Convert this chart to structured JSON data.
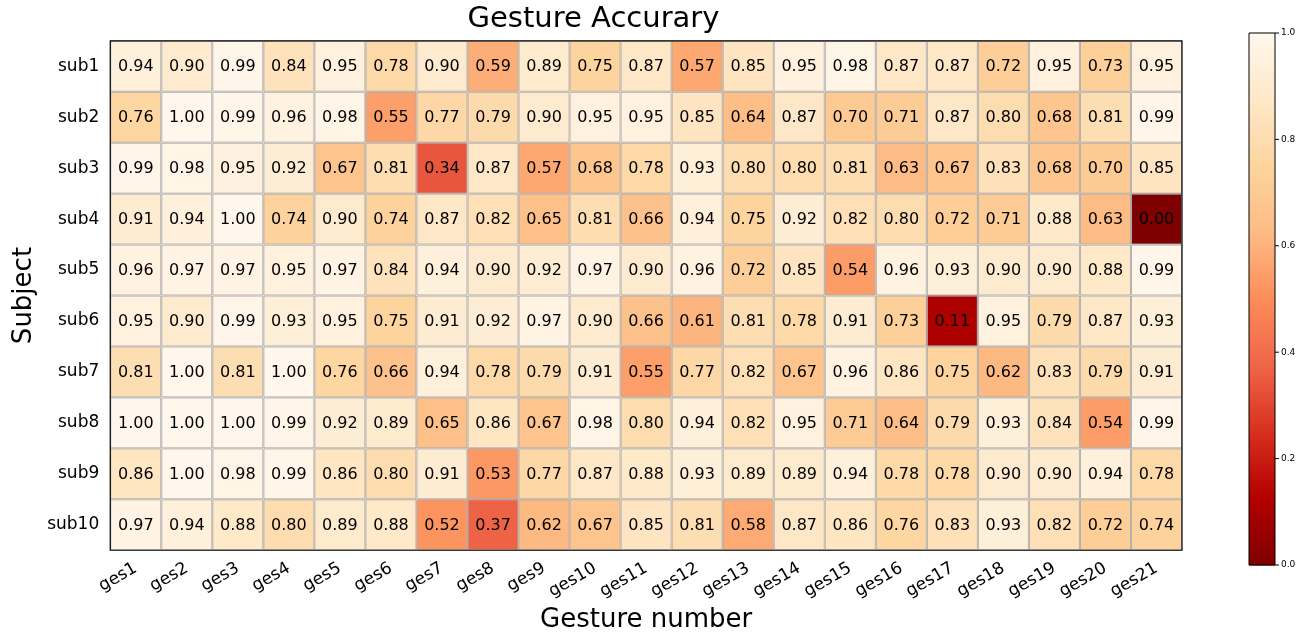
{
  "chart_data": {
    "type": "heatmap",
    "title": "Gesture Accurary",
    "xlabel": "Gesture number",
    "ylabel": "Subject",
    "categories": [
      "ges1",
      "ges2",
      "ges3",
      "ges4",
      "ges5",
      "ges6",
      "ges7",
      "ges8",
      "ges9",
      "ges10",
      "ges11",
      "ges12",
      "ges13",
      "ges14",
      "ges15",
      "ges16",
      "ges17",
      "ges18",
      "ges19",
      "ges20",
      "ges21"
    ],
    "y_categories": [
      "sub1",
      "sub2",
      "sub3",
      "sub4",
      "sub5",
      "sub6",
      "sub7",
      "sub8",
      "sub9",
      "sub10"
    ],
    "cells": [
      [
        0.94,
        0.9,
        0.99,
        0.84,
        0.95,
        0.78,
        0.9,
        0.59,
        0.89,
        0.75,
        0.87,
        0.57,
        0.85,
        0.95,
        0.98,
        0.87,
        0.87,
        0.72,
        0.95,
        0.73,
        0.95
      ],
      [
        0.76,
        1.0,
        0.99,
        0.96,
        0.98,
        0.55,
        0.77,
        0.79,
        0.9,
        0.95,
        0.95,
        0.85,
        0.64,
        0.87,
        0.7,
        0.71,
        0.87,
        0.8,
        0.68,
        0.81,
        0.99
      ],
      [
        0.99,
        0.98,
        0.95,
        0.92,
        0.67,
        0.81,
        0.34,
        0.87,
        0.57,
        0.68,
        0.78,
        0.93,
        0.8,
        0.8,
        0.81,
        0.63,
        0.67,
        0.83,
        0.68,
        0.7,
        0.85
      ],
      [
        0.91,
        0.94,
        1.0,
        0.74,
        0.9,
        0.74,
        0.87,
        0.82,
        0.65,
        0.81,
        0.66,
        0.94,
        0.75,
        0.92,
        0.82,
        0.8,
        0.72,
        0.71,
        0.88,
        0.63,
        0.0
      ],
      [
        0.96,
        0.97,
        0.97,
        0.95,
        0.97,
        0.84,
        0.94,
        0.9,
        0.92,
        0.97,
        0.9,
        0.96,
        0.72,
        0.85,
        0.54,
        0.96,
        0.93,
        0.9,
        0.9,
        0.88,
        0.99
      ],
      [
        0.95,
        0.9,
        0.99,
        0.93,
        0.95,
        0.75,
        0.91,
        0.92,
        0.97,
        0.9,
        0.66,
        0.61,
        0.81,
        0.78,
        0.91,
        0.73,
        0.11,
        0.95,
        0.79,
        0.87,
        0.93
      ],
      [
        0.81,
        1.0,
        0.81,
        1.0,
        0.76,
        0.66,
        0.94,
        0.78,
        0.79,
        0.91,
        0.55,
        0.77,
        0.82,
        0.67,
        0.96,
        0.86,
        0.75,
        0.62,
        0.83,
        0.79,
        0.91
      ],
      [
        1.0,
        1.0,
        1.0,
        0.99,
        0.92,
        0.89,
        0.65,
        0.86,
        0.67,
        0.98,
        0.8,
        0.94,
        0.82,
        0.95,
        0.71,
        0.64,
        0.79,
        0.93,
        0.84,
        0.54,
        0.99
      ],
      [
        0.86,
        1.0,
        0.98,
        0.99,
        0.86,
        0.8,
        0.91,
        0.53,
        0.77,
        0.87,
        0.88,
        0.93,
        0.89,
        0.89,
        0.94,
        0.78,
        0.78,
        0.9,
        0.9,
        0.94,
        0.78
      ],
      [
        0.97,
        0.94,
        0.88,
        0.8,
        0.89,
        0.88,
        0.52,
        0.37,
        0.62,
        0.67,
        0.85,
        0.81,
        0.58,
        0.87,
        0.86,
        0.76,
        0.83,
        0.93,
        0.82,
        0.72,
        0.74
      ]
    ],
    "cell_labels": [
      [
        "0.94",
        "0.90",
        "0.99",
        "0.84",
        "0.95",
        "0.78",
        "0.90",
        "0.59",
        "0.89",
        "0.75",
        "0.87",
        "0.57",
        "0.85",
        "0.95",
        "0.98",
        "0.87",
        "0.87",
        "0.72",
        "0.95",
        "0.73",
        "0.95"
      ],
      [
        "0.76",
        "1.00",
        "0.99",
        "0.96",
        "0.98",
        "0.55",
        "0.77",
        "0.79",
        "0.90",
        "0.95",
        "0.95",
        "0.85",
        "0.64",
        "0.87",
        "0.70",
        "0.71",
        "0.87",
        "0.80",
        "0.68",
        "0.81",
        "0.99"
      ],
      [
        "0.99",
        "0.98",
        "0.95",
        "0.92",
        "0.67",
        "0.81",
        "0.34",
        "0.87",
        "0.57",
        "0.68",
        "0.78",
        "0.93",
        "0.80",
        "0.80",
        "0.81",
        "0.63",
        "0.67",
        "0.83",
        "0.68",
        "0.70",
        "0.85"
      ],
      [
        "0.91",
        "0.94",
        "1.00",
        "0.74",
        "0.90",
        "0.74",
        "0.87",
        "0.82",
        "0.65",
        "0.81",
        "0.66",
        "0.94",
        "0.75",
        "0.92",
        "0.82",
        "0.80",
        "0.72",
        "0.71",
        "0.88",
        "0.63",
        "0.00"
      ],
      [
        "0.96",
        "0.97",
        "0.97",
        "0.95",
        "0.97",
        "0.84",
        "0.94",
        "0.90",
        "0.92",
        "0.97",
        "0.90",
        "0.96",
        "0.72",
        "0.85",
        "0.54",
        "0.96",
        "0.93",
        "0.90",
        "0.90",
        "0.88",
        "0.99"
      ],
      [
        "0.95",
        "0.90",
        "0.99",
        "0.93",
        "0.95",
        "0.75",
        "0.91",
        "0.92",
        "0.97",
        "0.90",
        "0.66",
        "0.61",
        "0.81",
        "0.78",
        "0.91",
        "0.73",
        "0.11",
        "0.95",
        "0.79",
        "0.87",
        "0.93"
      ],
      [
        "0.81",
        "1.00",
        "0.81",
        "1.00",
        "0.76",
        "0.66",
        "0.94",
        "0.78",
        "0.79",
        "0.91",
        "0.55",
        "0.77",
        "0.82",
        "0.67",
        "0.96",
        "0.86",
        "0.75",
        "0.62",
        "0.83",
        "0.79",
        "0.91"
      ],
      [
        "1.00",
        "1.00",
        "1.00",
        "0.99",
        "0.92",
        "0.89",
        "0.65",
        "0.86",
        "0.67",
        "0.98",
        "0.80",
        "0.94",
        "0.82",
        "0.95",
        "0.71",
        "0.64",
        "0.79",
        "0.93",
        "0.84",
        "0.54",
        "0.99"
      ],
      [
        "0.86",
        "1.00",
        "0.98",
        "0.99",
        "0.86",
        "0.80",
        "0.91",
        "0.53",
        "0.77",
        "0.87",
        "0.88",
        "0.93",
        "0.89",
        "0.89",
        "0.94",
        "0.78",
        "0.78",
        "0.90",
        "0.90",
        "0.94",
        "0.78"
      ],
      [
        "0.97",
        "0.94",
        "0.88",
        "0.80",
        "0.89",
        "0.88",
        "0.52",
        "0.37",
        "0.62",
        "0.67",
        "0.85",
        "0.81",
        "0.58",
        "0.87",
        "0.86",
        "0.76",
        "0.83",
        "0.93",
        "0.82",
        "0.72",
        "0.74"
      ]
    ],
    "clim": [
      0,
      1
    ],
    "cticks": [
      {
        "value": 0,
        "label": "0.0"
      },
      {
        "value": 0.2,
        "label": "0.2"
      },
      {
        "value": 0.4,
        "label": "0.4"
      },
      {
        "value": 0.6,
        "label": "0.6"
      },
      {
        "value": 0.8,
        "label": "0.8"
      },
      {
        "value": 1,
        "label": "1.0"
      }
    ]
  }
}
